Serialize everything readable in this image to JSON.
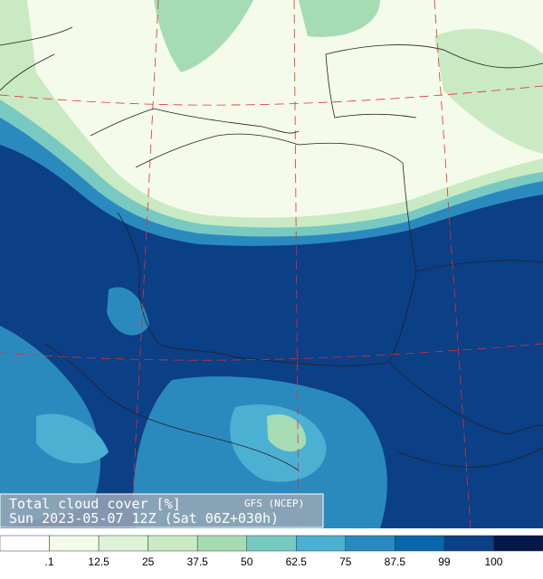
{
  "map": {
    "caption": {
      "title": "Total cloud cover [%]",
      "source": "GFS (NCEP)",
      "time": "Sun 2023-05-07 12Z (Sat 06Z+030h)"
    },
    "colorbar": {
      "colors": [
        "#ffffff",
        "#f4fbea",
        "#def2d8",
        "#c9eac2",
        "#a6dcb4",
        "#79c9c3",
        "#4bb0d2",
        "#2b8abd",
        "#0a66aa",
        "#0b3f86",
        "#04194a"
      ],
      "labels": [
        ".1",
        "12.5",
        "25",
        "37.5",
        "50",
        "62.5",
        "75",
        "87.5",
        "99",
        "100"
      ]
    }
  }
}
